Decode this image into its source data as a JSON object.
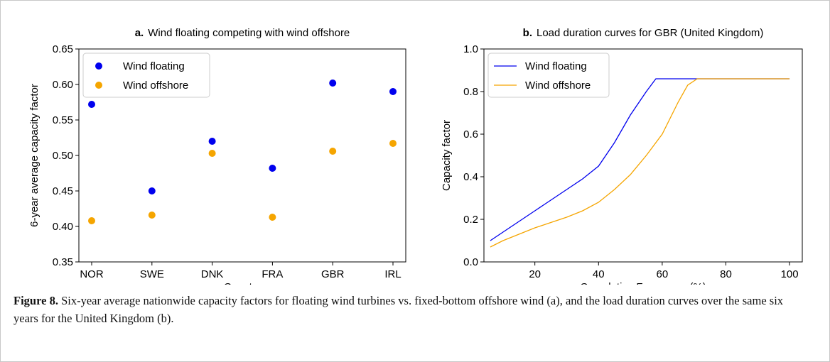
{
  "chart_data": [
    {
      "type": "scatter",
      "panel": "a.",
      "title": "Wind floating competing with wind offshore",
      "xlabel": "Country",
      "ylabel": "6-year average capacity factor",
      "categories": [
        "NOR",
        "SWE",
        "DNK",
        "FRA",
        "GBR",
        "IRL"
      ],
      "series": [
        {
          "name": "Wind floating",
          "color": "#0000ee",
          "values": [
            0.572,
            0.45,
            0.52,
            0.482,
            0.602,
            0.59
          ]
        },
        {
          "name": "Wind offshore",
          "color": "#f5a500",
          "values": [
            0.408,
            0.416,
            0.503,
            0.413,
            0.506,
            0.517
          ]
        }
      ],
      "ylim": [
        0.35,
        0.65
      ],
      "yticks": [
        0.35,
        {
          "value": 0.4,
          "label": "0.40"
        },
        0.45,
        {
          "value": 0.5,
          "label": "0.50"
        },
        0.55,
        {
          "value": 0.6,
          "label": "0.60"
        },
        0.65
      ],
      "legend": "upper left"
    },
    {
      "type": "line",
      "panel": "b.",
      "title": "Load duration curves for GBR (United Kingdom)",
      "xlabel": "Cumulative Frequency (%)",
      "ylabel": "Capacity factor",
      "series": [
        {
          "name": "Wind floating",
          "color": "#0000ee",
          "x": [
            6,
            10,
            15,
            20,
            25,
            30,
            35,
            40,
            45,
            50,
            55,
            58,
            100
          ],
          "values": [
            0.1,
            0.14,
            0.19,
            0.24,
            0.29,
            0.34,
            0.39,
            0.45,
            0.56,
            0.69,
            0.8,
            0.86,
            0.86
          ]
        },
        {
          "name": "Wind offshore",
          "color": "#f5a500",
          "x": [
            6,
            10,
            15,
            20,
            25,
            30,
            35,
            40,
            45,
            50,
            55,
            60,
            65,
            68,
            71,
            100
          ],
          "values": [
            0.07,
            0.1,
            0.13,
            0.16,
            0.185,
            0.21,
            0.24,
            0.28,
            0.34,
            0.41,
            0.5,
            0.6,
            0.75,
            0.83,
            0.86,
            0.86
          ]
        }
      ],
      "xlim": [
        4,
        104
      ],
      "xticks": [
        20,
        40,
        60,
        80,
        100
      ],
      "ylim": [
        0,
        1
      ],
      "yticks": [
        {
          "value": 0,
          "label": "0.0"
        },
        0.2,
        0.4,
        0.6,
        0.8,
        {
          "value": 1,
          "label": "1.0"
        }
      ],
      "legend": "upper left"
    }
  ],
  "caption": {
    "label": "Figure 8.",
    "text": "Six-year average nationwide capacity factors for floating wind turbines vs. fixed-bottom offshore wind (a), and the load duration curves over the same six years for the United Kingdom (b)."
  }
}
